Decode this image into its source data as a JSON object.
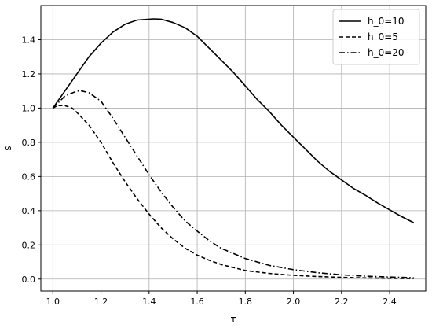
{
  "chart_data": {
    "type": "line",
    "title": "",
    "xlabel": "τ",
    "ylabel": "s",
    "xlim": [
      0.95,
      2.55
    ],
    "ylim": [
      -0.07,
      1.6
    ],
    "xticks": [
      1.0,
      1.2,
      1.4,
      1.6,
      1.8,
      2.0,
      2.2,
      2.4
    ],
    "xtick_labels": [
      "1.0",
      "1.2",
      "1.4",
      "1.6",
      "1.8",
      "2.0",
      "2.2",
      "2.4"
    ],
    "yticks": [
      0.0,
      0.2,
      0.4,
      0.6,
      0.8,
      1.0,
      1.2,
      1.4
    ],
    "ytick_labels": [
      "0.0",
      "0.2",
      "0.4",
      "0.6",
      "0.8",
      "1.0",
      "1.2",
      "1.4"
    ],
    "grid": true,
    "legend_position": "top-right",
    "color": "#000000",
    "series": [
      {
        "name": "h_0=10",
        "style": "solid",
        "x": [
          1.0,
          1.05,
          1.1,
          1.15,
          1.2,
          1.25,
          1.3,
          1.35,
          1.4,
          1.42,
          1.45,
          1.5,
          1.55,
          1.6,
          1.65,
          1.7,
          1.75,
          1.8,
          1.85,
          1.9,
          1.95,
          2.0,
          2.05,
          2.1,
          2.15,
          2.2,
          2.25,
          2.3,
          2.35,
          2.4,
          2.45,
          2.5
        ],
        "y": [
          1.0,
          1.1,
          1.2,
          1.3,
          1.38,
          1.445,
          1.49,
          1.515,
          1.52,
          1.522,
          1.52,
          1.5,
          1.47,
          1.42,
          1.35,
          1.28,
          1.21,
          1.13,
          1.05,
          0.98,
          0.9,
          0.83,
          0.76,
          0.69,
          0.63,
          0.58,
          0.53,
          0.49,
          0.445,
          0.405,
          0.365,
          0.33
        ]
      },
      {
        "name": "h_0=5",
        "style": "dashed",
        "x": [
          1.0,
          1.02,
          1.05,
          1.08,
          1.1,
          1.15,
          1.2,
          1.25,
          1.3,
          1.35,
          1.4,
          1.45,
          1.5,
          1.55,
          1.6,
          1.65,
          1.7,
          1.8,
          1.9,
          2.0,
          2.1,
          2.2,
          2.3,
          2.4,
          2.5
        ],
        "y": [
          1.0,
          1.015,
          1.015,
          1.0,
          0.975,
          0.9,
          0.8,
          0.68,
          0.57,
          0.47,
          0.38,
          0.3,
          0.235,
          0.18,
          0.14,
          0.11,
          0.085,
          0.05,
          0.033,
          0.022,
          0.015,
          0.01,
          0.007,
          0.005,
          0.003
        ]
      },
      {
        "name": "h_0=20",
        "style": "dashdot",
        "x": [
          1.0,
          1.05,
          1.1,
          1.12,
          1.15,
          1.2,
          1.25,
          1.3,
          1.35,
          1.4,
          1.45,
          1.5,
          1.55,
          1.6,
          1.65,
          1.7,
          1.8,
          1.9,
          2.0,
          2.1,
          2.2,
          2.3,
          2.4,
          2.5
        ],
        "y": [
          1.0,
          1.07,
          1.1,
          1.1,
          1.09,
          1.04,
          0.94,
          0.83,
          0.72,
          0.61,
          0.51,
          0.42,
          0.34,
          0.28,
          0.225,
          0.18,
          0.12,
          0.08,
          0.055,
          0.037,
          0.025,
          0.017,
          0.012,
          0.008
        ]
      }
    ]
  }
}
